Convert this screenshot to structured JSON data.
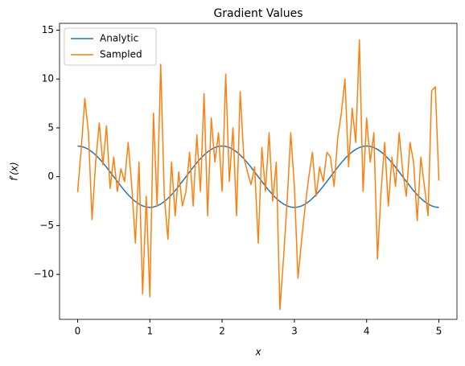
{
  "chart_data": {
    "type": "line",
    "title": "Gradient Values",
    "xlabel": "x",
    "ylabel": "f′(x)",
    "x": [
      0,
      0.05,
      0.1,
      0.15,
      0.2,
      0.25,
      0.3,
      0.35,
      0.4,
      0.45,
      0.5,
      0.55,
      0.6,
      0.65,
      0.7,
      0.75,
      0.8,
      0.85,
      0.9,
      0.95,
      1,
      1.05,
      1.1,
      1.15,
      1.2,
      1.25,
      1.3,
      1.35,
      1.4,
      1.45,
      1.5,
      1.55,
      1.6,
      1.65,
      1.7,
      1.75,
      1.8,
      1.85,
      1.9,
      1.95,
      2,
      2.05,
      2.1,
      2.15,
      2.2,
      2.25,
      2.3,
      2.35,
      2.4,
      2.45,
      2.5,
      2.55,
      2.6,
      2.65,
      2.7,
      2.75,
      2.8,
      2.85,
      2.9,
      2.95,
      3,
      3.05,
      3.1,
      3.15,
      3.2,
      3.25,
      3.3,
      3.35,
      3.4,
      3.45,
      3.5,
      3.55,
      3.6,
      3.65,
      3.7,
      3.75,
      3.8,
      3.85,
      3.9,
      3.95,
      4,
      4.05,
      4.1,
      4.15,
      4.2,
      4.25,
      4.3,
      4.35,
      4.4,
      4.45,
      4.5,
      4.55,
      4.6,
      4.65,
      4.7,
      4.75,
      4.8,
      4.85,
      4.9,
      4.95,
      5
    ],
    "series": [
      {
        "name": "Analytic",
        "color": "#1f77b4",
        "values": [
          3.14,
          3.1,
          2.99,
          2.8,
          2.54,
          2.22,
          1.85,
          1.43,
          0.97,
          0.49,
          0,
          -0.49,
          -0.97,
          -1.43,
          -1.85,
          -2.22,
          -2.54,
          -2.8,
          -2.99,
          -3.1,
          -3.14,
          -3.1,
          -2.99,
          -2.8,
          -2.54,
          -2.22,
          -1.85,
          -1.43,
          -0.97,
          -0.49,
          0,
          0.49,
          0.97,
          1.43,
          1.85,
          2.22,
          2.54,
          2.8,
          2.99,
          3.1,
          3.14,
          3.1,
          2.99,
          2.8,
          2.54,
          2.22,
          1.85,
          1.43,
          0.97,
          0.49,
          0,
          -0.49,
          -0.97,
          -1.43,
          -1.85,
          -2.22,
          -2.54,
          -2.8,
          -2.99,
          -3.1,
          -3.14,
          -3.1,
          -2.99,
          -2.8,
          -2.54,
          -2.22,
          -1.85,
          -1.43,
          -0.97,
          -0.49,
          0,
          0.49,
          0.97,
          1.43,
          1.85,
          2.22,
          2.54,
          2.8,
          2.99,
          3.1,
          3.14,
          3.1,
          2.99,
          2.8,
          2.54,
          2.22,
          1.85,
          1.43,
          0.97,
          0.49,
          0,
          -0.49,
          -0.97,
          -1.43,
          -1.85,
          -2.22,
          -2.54,
          -2.8,
          -2.99,
          -3.1,
          -3.14
        ]
      },
      {
        "name": "Sampled",
        "color": "#ff7f0e",
        "values": [
          -1.6,
          2.8,
          8.0,
          4.5,
          -4.4,
          1.5,
          5.5,
          1.2,
          5.2,
          -1.2,
          2.0,
          -1.5,
          0.8,
          -0.5,
          3.5,
          -1.0,
          -6.8,
          1.5,
          -12.0,
          -2.0,
          -12.3,
          6.5,
          -3.0,
          11.5,
          -2.0,
          -6.4,
          1.5,
          -4.0,
          0.5,
          -3.0,
          -1.5,
          2.5,
          -3.0,
          4.3,
          -1.5,
          8.5,
          -4.0,
          6.0,
          1.5,
          4.5,
          -1.5,
          10.5,
          -0.5,
          5.0,
          -4.0,
          8.7,
          2.0,
          0.5,
          -0.8,
          1.0,
          -6.8,
          3.0,
          -1.5,
          4.5,
          -2.5,
          1.5,
          -13.6,
          -8.3,
          -2.5,
          4.5,
          -1.0,
          -10.4,
          -6.5,
          -3.0,
          0,
          2.5,
          -2.0,
          1.0,
          -0.5,
          2.5,
          2.0,
          -1.0,
          4.0,
          6.5,
          10.0,
          1.0,
          7.0,
          3.5,
          14.0,
          -1.5,
          6.0,
          1.5,
          4.5,
          -8.4,
          -1.5,
          3.5,
          -3.0,
          2.0,
          -1.0,
          4.5,
          0.5,
          -2.0,
          3.5,
          1.5,
          -4.5,
          2.0,
          -1.0,
          -4.0,
          8.8,
          9.2,
          -0.4
        ]
      }
    ],
    "xlim": [
      -0.25,
      5.25
    ],
    "ylim": [
      -14.6,
      15.7
    ],
    "xticks": [
      0,
      1,
      2,
      3,
      4,
      5
    ],
    "yticks": [
      {
        "value": -10,
        "label": "−10"
      },
      {
        "value": -5,
        "label": "−5"
      },
      0,
      5,
      10,
      15
    ],
    "legend": "upper left"
  }
}
